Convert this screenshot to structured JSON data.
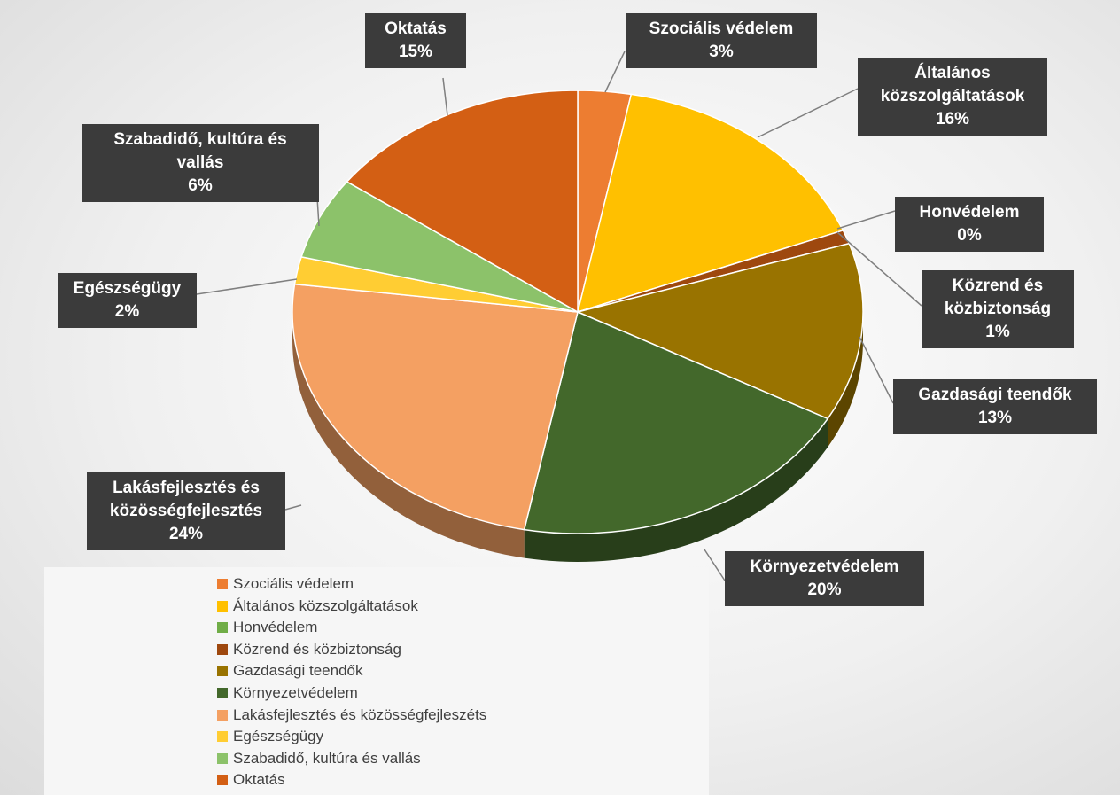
{
  "chart_data": {
    "type": "pie",
    "categories": [
      "Szociális védelem",
      "Általános közszolgáltatások",
      "Honvédelem",
      "Közrend és közbiztonság",
      "Gazdasági teendők",
      "Környezetvédelem",
      "Lakásfejlesztés és közösségfejleszéts",
      "Egészségügy",
      "Szabadidő, kultúra és vallás",
      "Oktatás"
    ],
    "data_label_names": [
      "Szociális védelem",
      "Általános közszolgáltatások",
      "Honvédelem",
      "Közrend és közbiztonság",
      "Gazdasági teendők",
      "Környezetvédelem",
      "Lakásfejlesztés és közösségfejlesztés",
      "Egészségügy",
      "Szabadidő, kultúra és vallás",
      "Oktatás"
    ],
    "values": [
      3,
      16,
      0,
      1,
      13,
      20,
      24,
      2,
      6,
      15
    ],
    "value_labels": [
      "3%",
      "16%",
      "0%",
      "1%",
      "13%",
      "20%",
      "24%",
      "2%",
      "6%",
      "15%"
    ],
    "colors": [
      "#ed7d31",
      "#ffc000",
      "#70ad47",
      "#9e480e",
      "#997300",
      "#43682b",
      "#f4a062",
      "#ffcd33",
      "#8cc26a",
      "#d35f14"
    ],
    "legend": "bottom-left"
  }
}
